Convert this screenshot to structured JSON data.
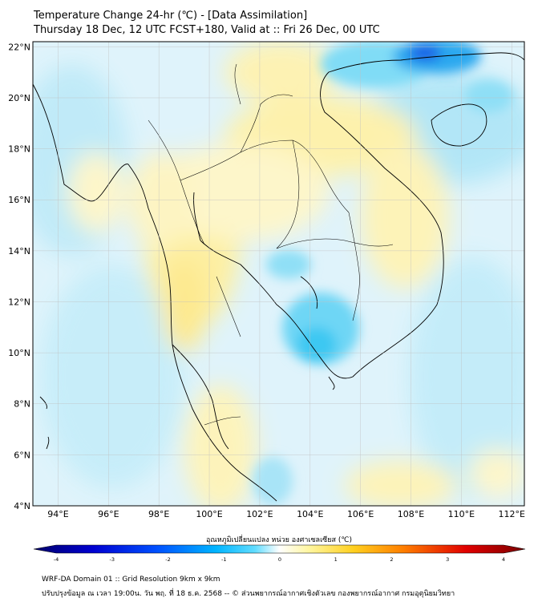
{
  "title": {
    "line1": "Temperature Change 24-hr (℃) - [Data Assimilation]",
    "line2": "Thursday 18 Dec, 12 UTC FCST+180, Valid at :: Fri 26 Dec, 00 UTC"
  },
  "map": {
    "lon_range": [
      93,
      112.5
    ],
    "lat_range": [
      4,
      22.2
    ],
    "lon_ticks": [
      "94°E",
      "96°E",
      "98°E",
      "100°E",
      "102°E",
      "104°E",
      "106°E",
      "108°E",
      "110°E",
      "112°E"
    ],
    "lat_ticks": [
      "22°N",
      "20°N",
      "18°N",
      "16°N",
      "14°N",
      "12°N",
      "10°N",
      "8°N",
      "6°N",
      "4°N"
    ],
    "gridlines": true
  },
  "colorbar": {
    "label": "อุณหภูมิเปลี่ยนแปลง หน่วย องศาเซลเซียส (℃)",
    "ticks": [
      "-4",
      "-3",
      "-2",
      "-1",
      "0",
      "1",
      "2",
      "3",
      "4"
    ],
    "range": [
      -4,
      4
    ],
    "colors": [
      "#00006b",
      "#0000d0",
      "#0050ff",
      "#00b4ff",
      "#40d8ff",
      "#ffffff",
      "#fff6a0",
      "#ffd020",
      "#ff8000",
      "#e00000",
      "#7a0000"
    ]
  },
  "footer": {
    "line1": "WRF-DA Domain 01 :: Grid Resolution 9km x 9km",
    "line2": "ปรับปรุงข้อมูล ณ เวลา 19:00น. วัน พฤ. ที่ 18 ธ.ค. 2568 -- © ส่วนพยากรณ์อากาศเชิงตัวเลข กองพยากรณ์อากาศ กรมอุตุนิยมวิทยา"
  }
}
